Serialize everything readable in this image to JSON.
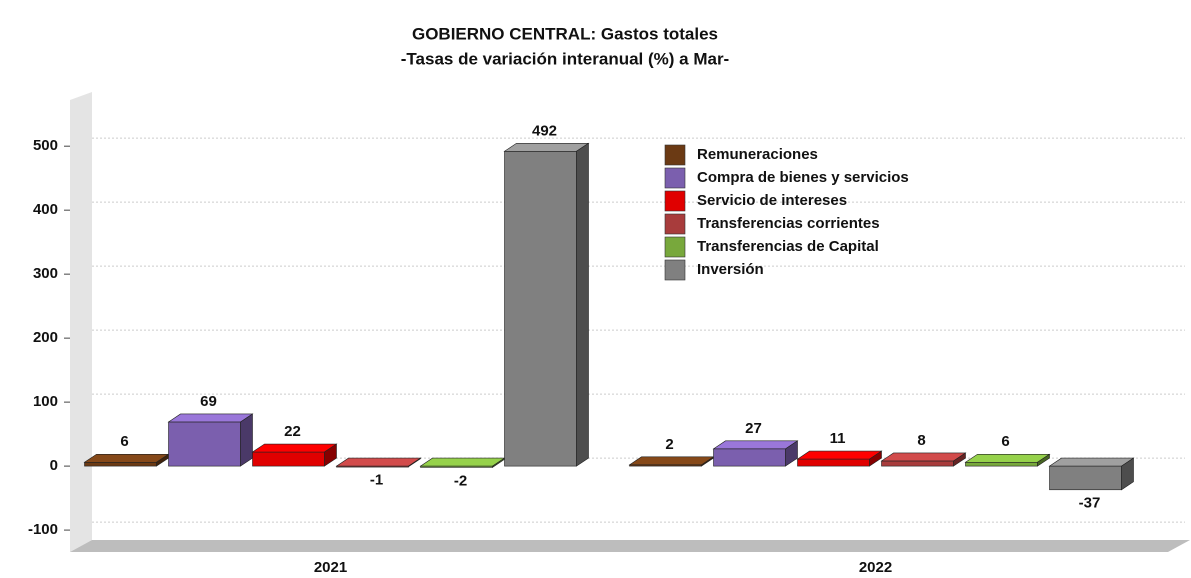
{
  "chart_data": {
    "type": "bar",
    "title": "GOBIERNO CENTRAL: Gastos totales",
    "subtitle": "-Tasas de variación interanual (%) a Mar-",
    "categories": [
      "2021",
      "2022"
    ],
    "series": [
      {
        "name": "Remuneraciones",
        "color": "#6b3a14",
        "values": [
          6,
          2
        ]
      },
      {
        "name": "Compra de bienes y servicios",
        "color": "#7b5fae",
        "values": [
          69,
          27
        ]
      },
      {
        "name": "Servicio de intereses",
        "color": "#e00000",
        "values": [
          22,
          11
        ]
      },
      {
        "name": "Transferencias corrientes",
        "color": "#a83c3c",
        "values": [
          -1,
          8
        ]
      },
      {
        "name": "Transferencias de Capital",
        "color": "#78a83c",
        "values": [
          -2,
          6
        ]
      },
      {
        "name": "Inversión",
        "color": "#808080",
        "values": [
          492,
          -37
        ]
      }
    ],
    "ylim": [
      -128,
      580
    ],
    "yticks": [
      -100,
      0,
      100,
      200,
      300,
      400,
      500
    ],
    "grid": true,
    "legend": "top-right"
  }
}
